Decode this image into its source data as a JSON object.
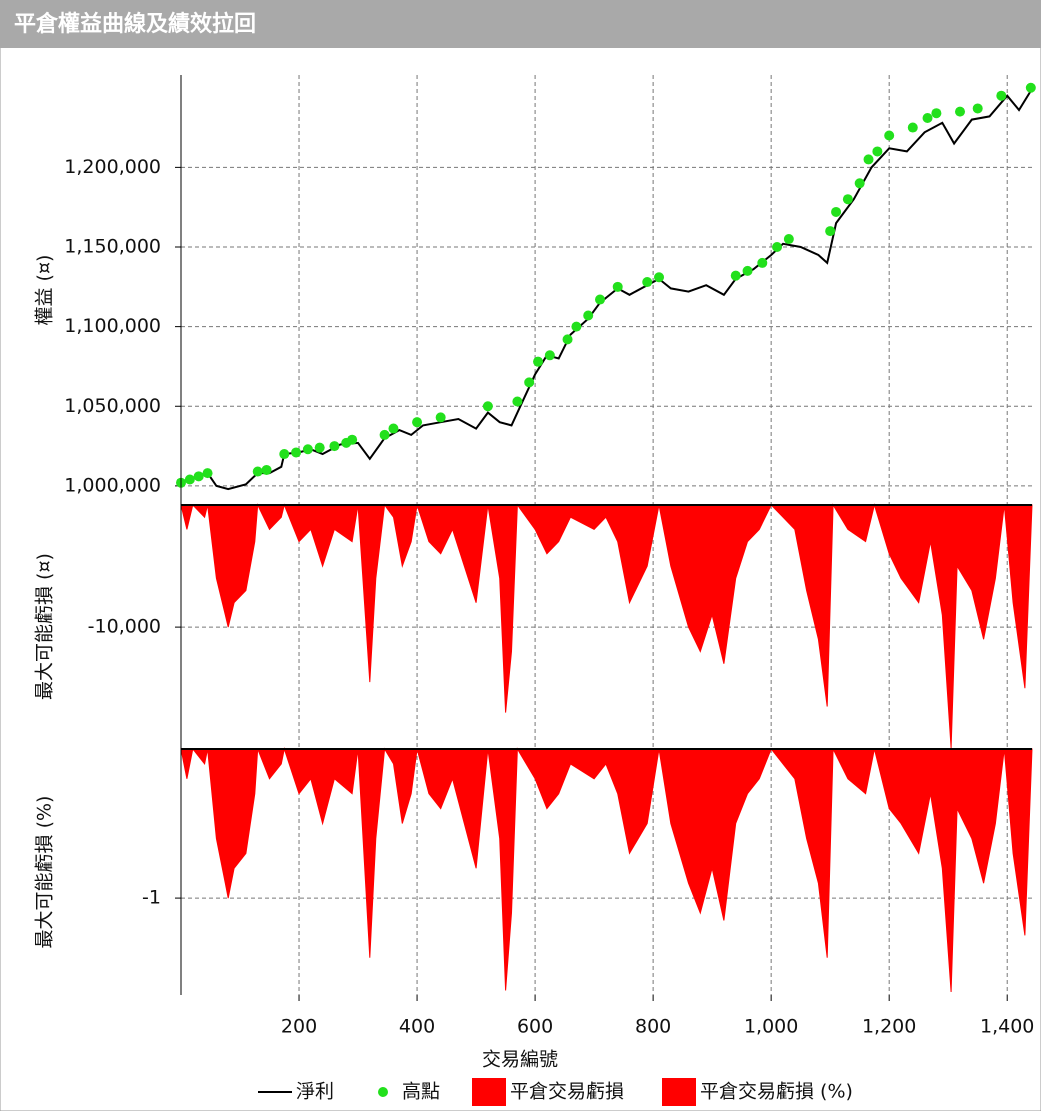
{
  "header": {
    "title": "平倉權益曲線及績效拉回"
  },
  "chart_data": [
    {
      "type": "line",
      "ylabel": "權益 (¤)",
      "xlim": [
        0,
        1442
      ],
      "ylim": [
        988000,
        1258000
      ],
      "grid": true,
      "xticks": [
        200,
        400,
        600,
        800,
        {
          "value": 1000,
          "label": "1,000"
        },
        {
          "value": 1200,
          "label": "1,200"
        },
        {
          "value": 1400,
          "label": "1,400"
        }
      ],
      "yticks": [
        {
          "value": 1000000,
          "label": "1,000,000"
        },
        {
          "value": 1050000,
          "label": "1,050,000"
        },
        {
          "value": 1100000,
          "label": "1,100,000"
        },
        {
          "value": 1150000,
          "label": "1,150,000"
        },
        {
          "value": 1200000,
          "label": "1,200,000"
        }
      ],
      "x": [
        0,
        20,
        45,
        60,
        80,
        110,
        130,
        150,
        170,
        175,
        200,
        220,
        240,
        270,
        300,
        320,
        345,
        370,
        390,
        410,
        440,
        470,
        500,
        520,
        540,
        560,
        575,
        600,
        620,
        640,
        660,
        690,
        710,
        740,
        760,
        790,
        810,
        830,
        860,
        890,
        920,
        940,
        970,
        1000,
        1020,
        1050,
        1080,
        1095,
        1110,
        1140,
        1170,
        1200,
        1230,
        1260,
        1290,
        1310,
        1340,
        1370,
        1400,
        1420,
        1440
      ],
      "series": [
        {
          "name": "淨利",
          "color": "#000000",
          "kind": "line",
          "values": [
            1002000,
            1005000,
            1008000,
            1000000,
            998000,
            1001000,
            1008000,
            1008000,
            1012000,
            1020000,
            1021000,
            1023000,
            1020000,
            1026000,
            1027000,
            1017000,
            1030000,
            1035000,
            1032000,
            1038000,
            1040000,
            1042000,
            1036000,
            1046000,
            1040000,
            1038000,
            1050000,
            1070000,
            1082000,
            1080000,
            1095000,
            1105000,
            1115000,
            1124000,
            1120000,
            1126000,
            1130000,
            1124000,
            1122000,
            1126000,
            1120000,
            1130000,
            1136000,
            1145000,
            1152000,
            1150000,
            1145000,
            1140000,
            1165000,
            1180000,
            1200000,
            1212000,
            1210000,
            1222000,
            1228000,
            1215000,
            1230000,
            1232000,
            1245000,
            1236000,
            1248000
          ]
        },
        {
          "name": "高點",
          "color": "#22e01c",
          "kind": "points",
          "x": [
            0,
            15,
            30,
            45,
            130,
            145,
            175,
            195,
            215,
            235,
            260,
            280,
            290,
            345,
            360,
            400,
            440,
            520,
            570,
            590,
            605,
            625,
            655,
            670,
            690,
            710,
            740,
            790,
            810,
            940,
            960,
            985,
            1010,
            1030,
            1100,
            1110,
            1130,
            1150,
            1165,
            1180,
            1200,
            1240,
            1265,
            1280,
            1320,
            1350,
            1390,
            1440
          ],
          "values": [
            1002000,
            1004000,
            1006000,
            1008000,
            1009000,
            1010000,
            1020000,
            1021000,
            1023000,
            1024000,
            1025000,
            1027000,
            1029000,
            1032000,
            1036000,
            1040000,
            1043000,
            1050000,
            1053000,
            1065000,
            1078000,
            1082000,
            1092000,
            1100000,
            1107000,
            1117000,
            1125000,
            1128000,
            1131000,
            1132000,
            1135000,
            1140000,
            1150000,
            1155000,
            1160000,
            1172000,
            1180000,
            1190000,
            1205000,
            1210000,
            1220000,
            1225000,
            1231000,
            1234000,
            1235000,
            1237000,
            1245000,
            1250000
          ]
        }
      ]
    },
    {
      "type": "area",
      "ylabel": "最大可能虧損 (¤)",
      "xlim": [
        0,
        1442
      ],
      "ylim": [
        -19900,
        0
      ],
      "grid": true,
      "xticks": [
        200,
        400,
        600,
        800,
        {
          "value": 1000,
          "label": "1,000"
        },
        {
          "value": 1200,
          "label": "1,200"
        },
        {
          "value": 1400,
          "label": "1,400"
        }
      ],
      "yticks": [
        {
          "value": -10000,
          "label": "-10,000"
        }
      ],
      "x": [
        0,
        10,
        20,
        40,
        45,
        60,
        75,
        80,
        90,
        110,
        125,
        130,
        150,
        170,
        175,
        200,
        220,
        240,
        260,
        290,
        300,
        320,
        330,
        345,
        360,
        375,
        390,
        400,
        420,
        440,
        460,
        480,
        500,
        520,
        540,
        550,
        560,
        570,
        600,
        620,
        640,
        660,
        700,
        720,
        740,
        760,
        790,
        810,
        830,
        860,
        880,
        900,
        920,
        940,
        960,
        980,
        1000,
        1020,
        1040,
        1060,
        1080,
        1095,
        1105,
        1130,
        1160,
        1175,
        1200,
        1220,
        1250,
        1270,
        1290,
        1305,
        1315,
        1340,
        1360,
        1380,
        1395,
        1410,
        1430,
        1442
      ],
      "series": [
        {
          "name": "平倉交易虧損",
          "color": "#ff0000",
          "values": [
            0,
            -2000,
            0,
            -1000,
            0,
            -6000,
            -9000,
            -10000,
            -8000,
            -7000,
            -3000,
            0,
            -2000,
            -1000,
            0,
            -3000,
            -2000,
            -5000,
            -2000,
            -3000,
            0,
            -14500,
            -6000,
            0,
            -1000,
            -5000,
            -3000,
            0,
            -3000,
            -4000,
            -2000,
            -5000,
            -8000,
            0,
            -6000,
            -17000,
            -12000,
            0,
            -2000,
            -4000,
            -3000,
            -1000,
            -2000,
            -1000,
            -3000,
            -8000,
            -5000,
            0,
            -5000,
            -10000,
            -12000,
            -9000,
            -13000,
            -6000,
            -3000,
            -2000,
            0,
            -1000,
            -2000,
            -7000,
            -11000,
            -16500,
            0,
            -2000,
            -3000,
            0,
            -4000,
            -6000,
            -8000,
            -3000,
            -9000,
            -19900,
            -5000,
            -7000,
            -11000,
            -6000,
            0,
            -8000,
            -15000,
            0
          ]
        }
      ]
    },
    {
      "type": "area",
      "ylabel": "最大可能虧損 (%)",
      "xlabel": "交易編號",
      "show_xtick_labels": true,
      "xlim": [
        0,
        1442
      ],
      "ylim": [
        -1.65,
        0
      ],
      "grid": true,
      "xticks": [
        200,
        400,
        600,
        800,
        {
          "value": 1000,
          "label": "1,000"
        },
        {
          "value": 1200,
          "label": "1,200"
        },
        {
          "value": 1400,
          "label": "1,400"
        }
      ],
      "yticks": [
        -1
      ],
      "x": [
        0,
        10,
        20,
        40,
        45,
        60,
        75,
        80,
        90,
        110,
        125,
        130,
        150,
        170,
        175,
        200,
        220,
        240,
        260,
        290,
        300,
        320,
        330,
        345,
        360,
        375,
        390,
        400,
        420,
        440,
        460,
        480,
        500,
        520,
        540,
        550,
        560,
        570,
        600,
        620,
        640,
        660,
        700,
        720,
        740,
        760,
        790,
        810,
        830,
        860,
        880,
        900,
        920,
        940,
        960,
        980,
        1000,
        1020,
        1040,
        1060,
        1080,
        1095,
        1105,
        1130,
        1160,
        1175,
        1200,
        1220,
        1250,
        1270,
        1290,
        1305,
        1315,
        1340,
        1360,
        1380,
        1395,
        1410,
        1430,
        1442
      ],
      "series": [
        {
          "name": "平倉交易虧損 (%)",
          "color": "#ff0000",
          "values": [
            0,
            -0.2,
            0,
            -0.1,
            0,
            -0.6,
            -0.9,
            -1.0,
            -0.8,
            -0.7,
            -0.3,
            0,
            -0.2,
            -0.1,
            0,
            -0.3,
            -0.2,
            -0.5,
            -0.2,
            -0.3,
            0,
            -1.4,
            -0.6,
            0,
            -0.1,
            -0.5,
            -0.3,
            0,
            -0.3,
            -0.4,
            -0.2,
            -0.5,
            -0.8,
            0,
            -0.6,
            -1.62,
            -1.1,
            0,
            -0.2,
            -0.4,
            -0.3,
            -0.1,
            -0.2,
            -0.1,
            -0.3,
            -0.7,
            -0.5,
            0,
            -0.5,
            -0.9,
            -1.1,
            -0.8,
            -1.15,
            -0.5,
            -0.3,
            -0.2,
            0,
            -0.1,
            -0.2,
            -0.6,
            -0.9,
            -1.4,
            0,
            -0.2,
            -0.3,
            0,
            -0.4,
            -0.5,
            -0.7,
            -0.3,
            -0.8,
            -1.63,
            -0.4,
            -0.6,
            -0.9,
            -0.5,
            0,
            -0.7,
            -1.25,
            0
          ]
        }
      ]
    }
  ]
}
